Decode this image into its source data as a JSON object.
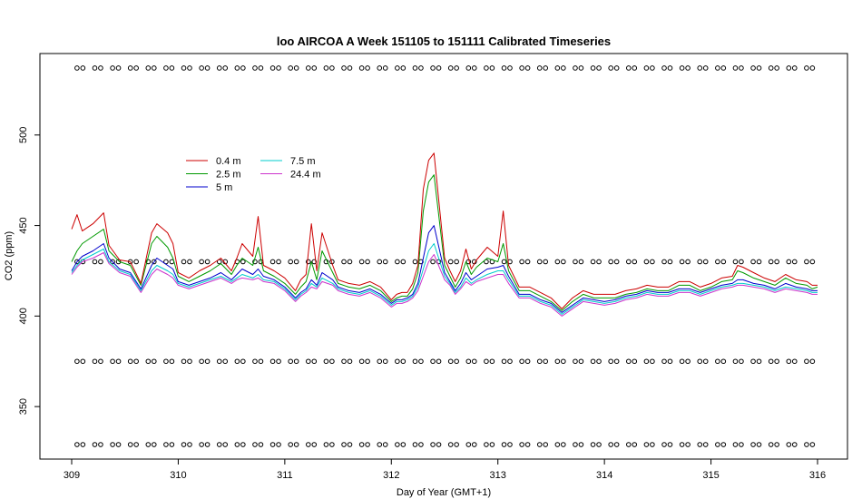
{
  "chart_data": {
    "type": "line",
    "title": "loo AIRCOA A  Week 151105 to 151111  Calibrated Timeseries",
    "xlabel": "Day of Year (GMT+1)",
    "ylabel": "CO2 (ppm)",
    "xlim": [
      309,
      316
    ],
    "ylim": [
      321,
      545
    ],
    "x_ticks": [
      309,
      310,
      311,
      312,
      313,
      314,
      315,
      316
    ],
    "y_ticks": [
      350,
      400,
      450,
      500
    ],
    "grid": false,
    "legend_position": "top-left",
    "series": [
      {
        "name": "0.4 m",
        "color": "#cc0000",
        "x": [
          309.0,
          309.05,
          309.1,
          309.2,
          309.3,
          309.35,
          309.45,
          309.55,
          309.65,
          309.75,
          309.8,
          309.9,
          309.95,
          310.0,
          310.1,
          310.2,
          310.3,
          310.4,
          310.5,
          310.55,
          310.6,
          310.7,
          310.75,
          310.8,
          310.9,
          311.0,
          311.1,
          311.15,
          311.2,
          311.25,
          311.3,
          311.35,
          311.45,
          311.5,
          311.6,
          311.7,
          311.8,
          311.9,
          312.0,
          312.05,
          312.1,
          312.15,
          312.2,
          312.25,
          312.3,
          312.35,
          312.4,
          312.5,
          312.55,
          312.6,
          312.65,
          312.7,
          312.75,
          312.8,
          312.9,
          313.0,
          313.05,
          313.1,
          313.2,
          313.3,
          313.4,
          313.5,
          313.6,
          313.7,
          313.8,
          313.9,
          314.0,
          314.1,
          314.2,
          314.3,
          314.4,
          314.5,
          314.6,
          314.7,
          314.8,
          314.9,
          315.0,
          315.1,
          315.2,
          315.25,
          315.3,
          315.4,
          315.5,
          315.6,
          315.7,
          315.8,
          315.9,
          315.95,
          316.0
        ],
        "y": [
          448,
          456,
          447,
          451,
          457,
          439,
          431,
          430,
          418,
          446,
          451,
          446,
          440,
          424,
          421,
          425,
          428,
          432,
          425,
          432,
          440,
          433,
          455,
          428,
          425,
          421,
          414,
          420,
          423,
          451,
          425,
          446,
          428,
          420,
          418,
          417,
          419,
          416,
          409,
          412,
          413,
          413,
          418,
          428,
          470,
          486,
          490,
          432,
          425,
          419,
          425,
          437,
          426,
          431,
          438,
          433,
          458,
          428,
          416,
          416,
          413,
          410,
          404,
          410,
          414,
          412,
          412,
          412,
          414,
          415,
          417,
          416,
          416,
          419,
          419,
          416,
          418,
          421,
          422,
          428,
          427,
          424,
          421,
          419,
          423,
          420,
          419,
          417,
          417
        ]
      },
      {
        "name": "2.5 m",
        "color": "#009900",
        "x": [
          309.0,
          309.05,
          309.1,
          309.2,
          309.3,
          309.35,
          309.45,
          309.55,
          309.65,
          309.75,
          309.8,
          309.9,
          309.95,
          310.0,
          310.1,
          310.2,
          310.3,
          310.4,
          310.5,
          310.55,
          310.6,
          310.7,
          310.75,
          310.8,
          310.9,
          311.0,
          311.1,
          311.15,
          311.2,
          311.25,
          311.3,
          311.35,
          311.45,
          311.5,
          311.6,
          311.7,
          311.8,
          311.9,
          312.0,
          312.05,
          312.1,
          312.15,
          312.2,
          312.25,
          312.3,
          312.35,
          312.4,
          312.5,
          312.55,
          312.6,
          312.65,
          312.7,
          312.75,
          312.8,
          312.9,
          313.0,
          313.05,
          313.1,
          313.2,
          313.3,
          313.4,
          313.5,
          313.6,
          313.7,
          313.8,
          313.9,
          314.0,
          314.1,
          314.2,
          314.3,
          314.4,
          314.5,
          314.6,
          314.7,
          314.8,
          314.9,
          315.0,
          315.1,
          315.2,
          315.25,
          315.3,
          315.4,
          315.5,
          315.6,
          315.7,
          315.8,
          315.9,
          315.95,
          316.0
        ],
        "y": [
          430,
          436,
          440,
          444,
          448,
          436,
          430,
          428,
          417,
          440,
          444,
          438,
          432,
          422,
          419,
          422,
          425,
          429,
          423,
          428,
          432,
          428,
          438,
          425,
          422,
          418,
          412,
          416,
          419,
          430,
          420,
          436,
          424,
          418,
          416,
          415,
          417,
          414,
          408,
          410,
          411,
          411,
          415,
          424,
          458,
          474,
          478,
          428,
          422,
          416,
          421,
          430,
          423,
          427,
          432,
          430,
          440,
          425,
          414,
          414,
          411,
          408,
          403,
          408,
          412,
          410,
          410,
          410,
          412,
          413,
          415,
          414,
          414,
          417,
          417,
          414,
          416,
          419,
          420,
          425,
          424,
          421,
          419,
          417,
          421,
          418,
          417,
          415,
          416
        ]
      },
      {
        "name": "5 m",
        "color": "#0000cc",
        "x": [
          309.0,
          309.05,
          309.1,
          309.2,
          309.3,
          309.35,
          309.45,
          309.55,
          309.65,
          309.75,
          309.8,
          309.9,
          309.95,
          310.0,
          310.1,
          310.2,
          310.3,
          310.4,
          310.5,
          310.55,
          310.6,
          310.7,
          310.75,
          310.8,
          310.9,
          311.0,
          311.1,
          311.15,
          311.2,
          311.25,
          311.3,
          311.35,
          311.45,
          311.5,
          311.6,
          311.7,
          311.8,
          311.9,
          312.0,
          312.05,
          312.1,
          312.15,
          312.2,
          312.25,
          312.3,
          312.35,
          312.4,
          312.5,
          312.55,
          312.6,
          312.65,
          312.7,
          312.75,
          312.8,
          312.9,
          313.0,
          313.05,
          313.1,
          313.2,
          313.3,
          313.4,
          313.5,
          313.6,
          313.7,
          313.8,
          313.9,
          314.0,
          314.1,
          314.2,
          314.3,
          314.4,
          314.5,
          314.6,
          314.7,
          314.8,
          314.9,
          315.0,
          315.1,
          315.2,
          315.25,
          315.3,
          315.4,
          315.5,
          315.6,
          315.7,
          315.8,
          315.9,
          315.95,
          316.0
        ],
        "y": [
          425,
          430,
          433,
          436,
          440,
          432,
          426,
          424,
          415,
          428,
          432,
          428,
          426,
          419,
          417,
          419,
          421,
          424,
          420,
          423,
          426,
          423,
          426,
          422,
          420,
          416,
          410,
          413,
          415,
          420,
          417,
          424,
          420,
          416,
          414,
          413,
          415,
          412,
          407,
          409,
          409,
          410,
          412,
          418,
          432,
          446,
          450,
          424,
          419,
          414,
          418,
          424,
          420,
          422,
          426,
          427,
          428,
          422,
          412,
          412,
          409,
          407,
          402,
          406,
          410,
          409,
          408,
          409,
          411,
          412,
          414,
          413,
          413,
          415,
          415,
          413,
          415,
          417,
          418,
          420,
          420,
          418,
          417,
          415,
          418,
          416,
          415,
          414,
          414
        ]
      },
      {
        "name": "7.5 m",
        "color": "#00cccc",
        "x": [
          309.0,
          309.05,
          309.1,
          309.2,
          309.3,
          309.35,
          309.45,
          309.55,
          309.65,
          309.75,
          309.8,
          309.9,
          309.95,
          310.0,
          310.1,
          310.2,
          310.3,
          310.4,
          310.5,
          310.55,
          310.6,
          310.7,
          310.75,
          310.8,
          310.9,
          311.0,
          311.1,
          311.15,
          311.2,
          311.25,
          311.3,
          311.35,
          311.45,
          311.5,
          311.6,
          311.7,
          311.8,
          311.9,
          312.0,
          312.05,
          312.1,
          312.15,
          312.2,
          312.25,
          312.3,
          312.35,
          312.4,
          312.5,
          312.55,
          312.6,
          312.65,
          312.7,
          312.75,
          312.8,
          312.9,
          313.0,
          313.05,
          313.1,
          313.2,
          313.3,
          313.4,
          313.5,
          313.6,
          313.7,
          313.8,
          313.9,
          314.0,
          314.1,
          314.2,
          314.3,
          314.4,
          314.5,
          314.6,
          314.7,
          314.8,
          314.9,
          315.0,
          315.1,
          315.2,
          315.25,
          315.3,
          315.4,
          315.5,
          315.6,
          315.7,
          315.8,
          315.9,
          315.95,
          316.0
        ],
        "y": [
          424,
          428,
          431,
          434,
          437,
          430,
          425,
          423,
          414,
          425,
          428,
          425,
          423,
          418,
          416,
          418,
          420,
          422,
          419,
          421,
          423,
          421,
          423,
          420,
          419,
          415,
          409,
          412,
          414,
          418,
          416,
          421,
          418,
          415,
          413,
          412,
          414,
          411,
          406,
          408,
          408,
          409,
          411,
          416,
          426,
          436,
          440,
          422,
          418,
          413,
          416,
          421,
          418,
          420,
          423,
          425,
          425,
          420,
          411,
          411,
          408,
          406,
          401,
          405,
          409,
          408,
          407,
          408,
          410,
          411,
          413,
          412,
          412,
          414,
          414,
          412,
          414,
          416,
          417,
          418,
          418,
          417,
          416,
          414,
          416,
          415,
          414,
          413,
          413
        ]
      },
      {
        "name": "24.4 m",
        "color": "#cc33cc",
        "x": [
          309.0,
          309.05,
          309.1,
          309.2,
          309.3,
          309.35,
          309.45,
          309.55,
          309.65,
          309.75,
          309.8,
          309.9,
          309.95,
          310.0,
          310.1,
          310.2,
          310.3,
          310.4,
          310.5,
          310.55,
          310.6,
          310.7,
          310.75,
          310.8,
          310.9,
          311.0,
          311.1,
          311.15,
          311.2,
          311.25,
          311.3,
          311.35,
          311.45,
          311.5,
          311.6,
          311.7,
          311.8,
          311.9,
          312.0,
          312.05,
          312.1,
          312.15,
          312.2,
          312.25,
          312.3,
          312.35,
          312.4,
          312.5,
          312.55,
          312.6,
          312.65,
          312.7,
          312.75,
          312.8,
          312.9,
          313.0,
          313.05,
          313.1,
          313.2,
          313.3,
          313.4,
          313.5,
          313.6,
          313.7,
          313.8,
          313.9,
          314.0,
          314.1,
          314.2,
          314.3,
          314.4,
          314.5,
          314.6,
          314.7,
          314.8,
          314.9,
          315.0,
          315.1,
          315.2,
          315.25,
          315.3,
          315.4,
          315.5,
          315.6,
          315.7,
          315.8,
          315.9,
          315.95,
          316.0
        ],
        "y": [
          423,
          427,
          430,
          432,
          435,
          429,
          424,
          422,
          413,
          423,
          426,
          423,
          421,
          417,
          415,
          417,
          419,
          421,
          418,
          420,
          421,
          420,
          421,
          419,
          418,
          414,
          408,
          411,
          413,
          416,
          415,
          419,
          417,
          414,
          412,
          411,
          413,
          410,
          405,
          407,
          407,
          408,
          410,
          414,
          422,
          430,
          434,
          420,
          417,
          412,
          415,
          419,
          417,
          419,
          421,
          423,
          423,
          418,
          410,
          410,
          407,
          405,
          400,
          404,
          408,
          407,
          406,
          407,
          409,
          410,
          412,
          411,
          411,
          413,
          413,
          411,
          413,
          415,
          416,
          417,
          417,
          416,
          415,
          413,
          415,
          414,
          413,
          412,
          412
        ]
      }
    ],
    "calibration_markers": {
      "levels": [
        537,
        430,
        375,
        329
      ],
      "spacing_days": 0.167
    }
  }
}
